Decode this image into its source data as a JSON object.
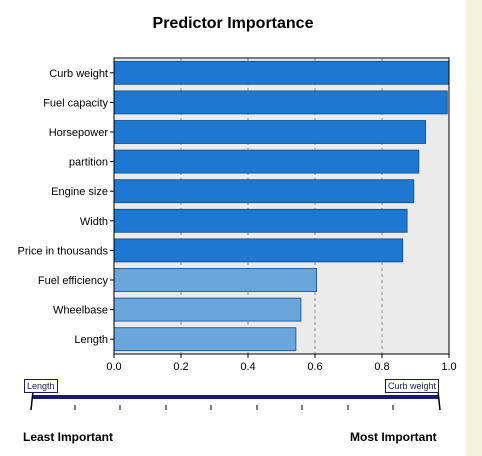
{
  "chart_data": {
    "type": "bar",
    "orientation": "horizontal",
    "title": "Predictor Importance",
    "categories": [
      "Curb weight",
      "Fuel capacity",
      "Horsepower",
      "partition",
      "Engine size",
      "Width",
      "Price in thousands",
      "Fuel efficiency",
      "Wheelbase",
      "Length"
    ],
    "values": [
      1.0,
      0.995,
      0.93,
      0.91,
      0.895,
      0.875,
      0.862,
      0.605,
      0.558,
      0.543
    ],
    "xlim": [
      0,
      1.0
    ],
    "xticks": [
      "0.0",
      "0.2",
      "0.4",
      "0.6",
      "0.8",
      "1.0"
    ],
    "grid": "vertical dashed",
    "colors": {
      "top_bars": "#1e78d2",
      "lower_bars": "#6aa6dc",
      "plot_background": "#ebebeb",
      "bar_border": "#0e4c8a"
    },
    "highlighted_count": 7
  },
  "slider": {
    "left_label": "Length",
    "right_label": "Curb weight",
    "least_label": "Least Important",
    "most_label": "Most Important"
  }
}
